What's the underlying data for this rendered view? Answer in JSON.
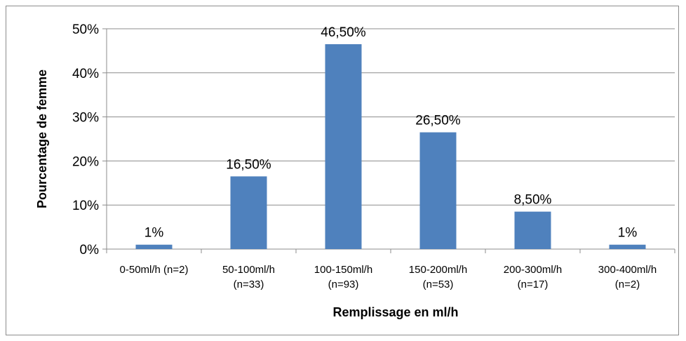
{
  "chart_data": {
    "type": "bar",
    "title": "",
    "xlabel": "Remplissage en ml/h",
    "ylabel": "Pourcentage de femme",
    "ylim": [
      0,
      50
    ],
    "yticks": [
      "0%",
      "10%",
      "20%",
      "30%",
      "40%",
      "50%"
    ],
    "grid": true,
    "legend": "none",
    "bar_color": "#4F81BD",
    "categories": [
      [
        "0-50ml/h (n=2)"
      ],
      [
        "50-100ml/h",
        "(n=33)"
      ],
      [
        "100-150ml/h",
        "(n=93)"
      ],
      [
        "150-200ml/h",
        "(n=53)"
      ],
      [
        "200-300ml/h",
        "(n=17)"
      ],
      [
        "300-400ml/h",
        "(n=2)"
      ]
    ],
    "values": [
      1,
      16.5,
      46.5,
      26.5,
      8.5,
      1
    ],
    "data_labels": [
      "1%",
      "16,50%",
      "46,50%",
      "26,50%",
      "8,50%",
      "1%"
    ]
  }
}
